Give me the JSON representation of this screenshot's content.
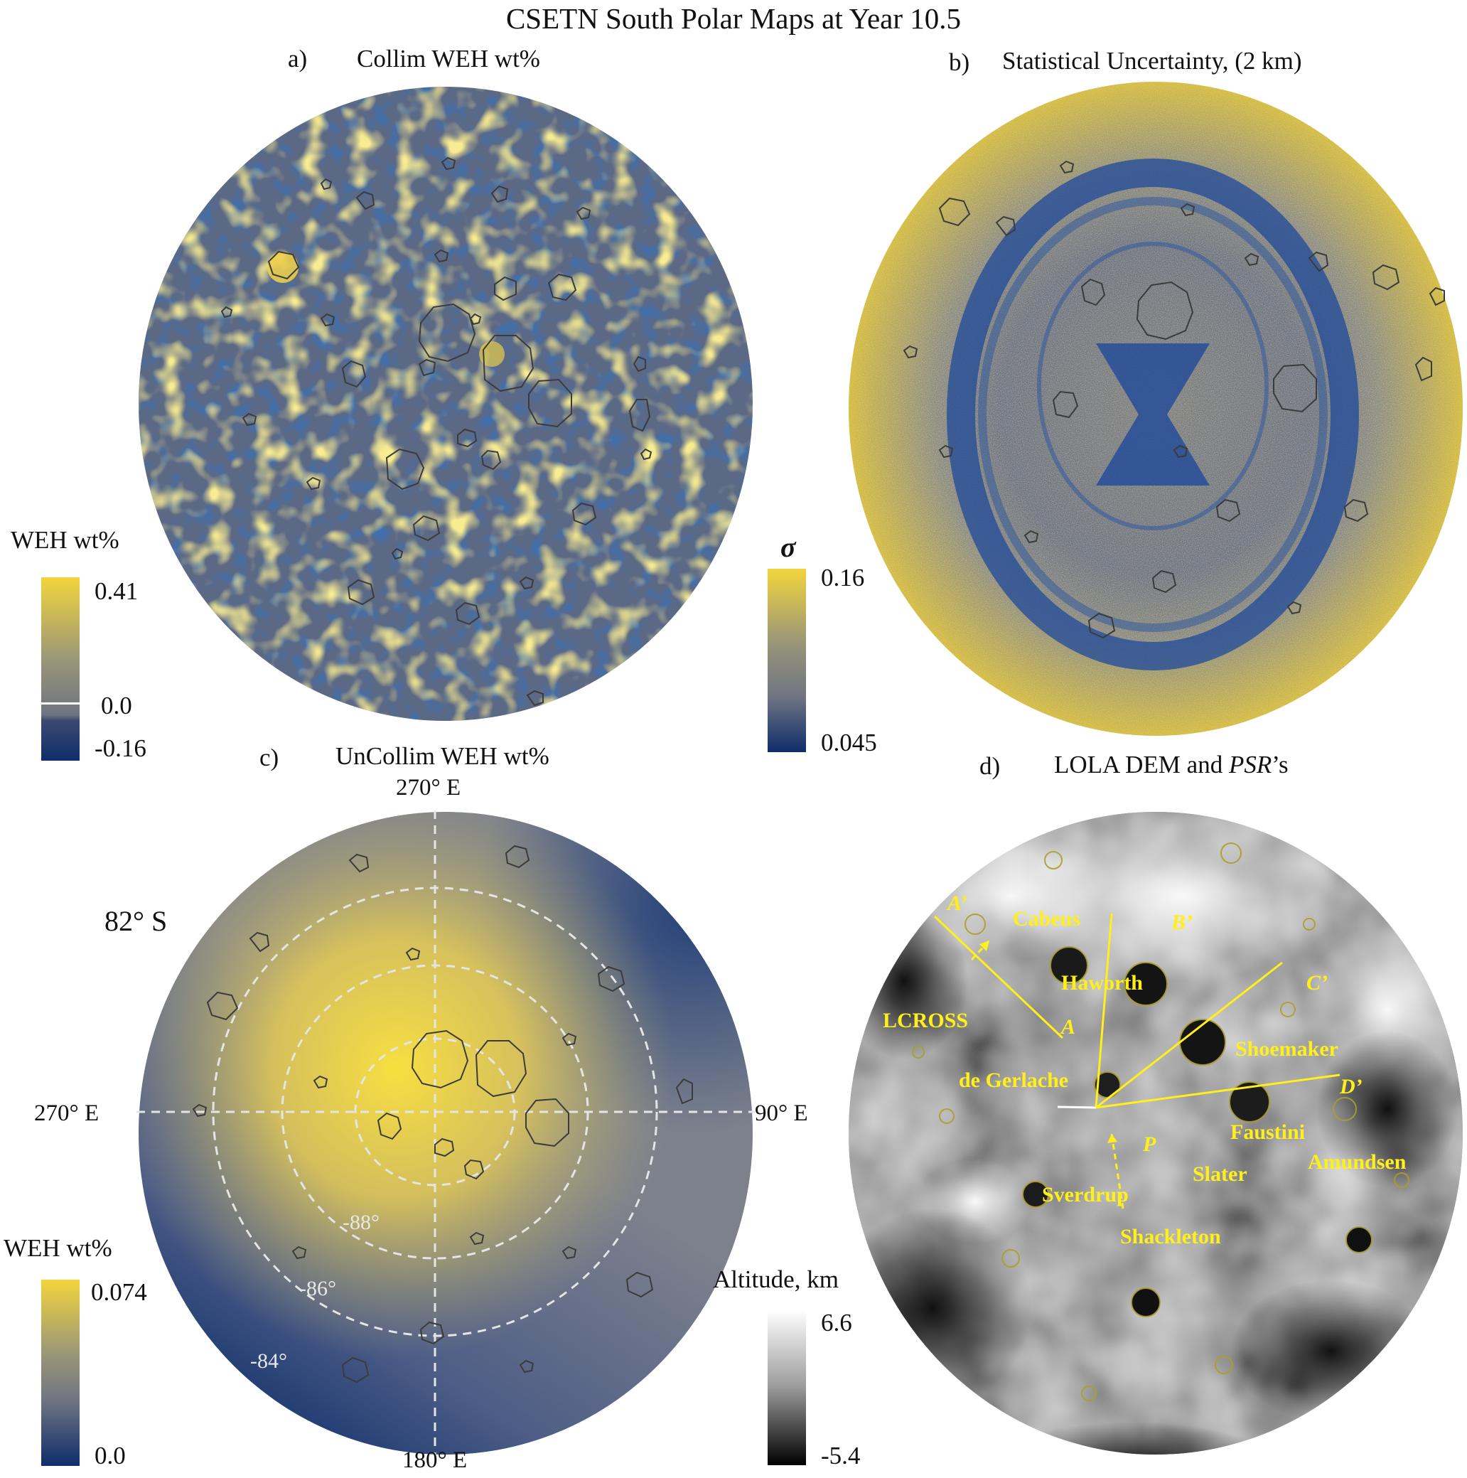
{
  "title": "CSETN South Polar Maps at Year 10.5",
  "panels": {
    "a": {
      "letter": "a)",
      "title": "Collim WEH wt%"
    },
    "b": {
      "letter": "b)",
      "title": "Statistical Uncertainty, (2 km)"
    },
    "c": {
      "letter": "c)",
      "title": "UnCollim WEH wt%"
    },
    "d": {
      "letter": "d)",
      "title_main": "LOLA DEM and ",
      "title_italic": "PSR",
      "title_tail": "’s"
    }
  },
  "colorbars": {
    "a": {
      "title": "WEH wt%",
      "max": "0.41",
      "zero": "0.0",
      "min": "-0.16"
    },
    "b": {
      "title": "σ",
      "max": "0.16",
      "min": "0.045"
    },
    "c": {
      "title": "WEH wt%",
      "max": "0.074",
      "min": "0.0"
    },
    "d": {
      "title": "Altitude, km",
      "max": "6.6",
      "min": "-5.4"
    }
  },
  "grid": {
    "top": "270° E",
    "left": "270° E",
    "right": "90° E",
    "bottom": "180° E",
    "lat_outer": "82° S",
    "lat_labels": [
      "-84°",
      "-86°",
      "-88°"
    ]
  },
  "dem_labels": {
    "features": [
      "Cabeus",
      "Haworth",
      "LCROSS",
      "de Gerlache",
      "Shoemaker",
      "Faustini",
      "Amundsen",
      "Slater",
      "Sverdrup",
      "Shackleton"
    ],
    "profiles": [
      "A’",
      "A",
      "B’",
      "C’",
      "D’",
      "P"
    ]
  },
  "colors": {
    "yellow": "#f2d53c",
    "gray": "#8f8f7a",
    "navy": "#13306b",
    "dem_label": "#ffef1a",
    "contour": "#3b3b3b"
  }
}
